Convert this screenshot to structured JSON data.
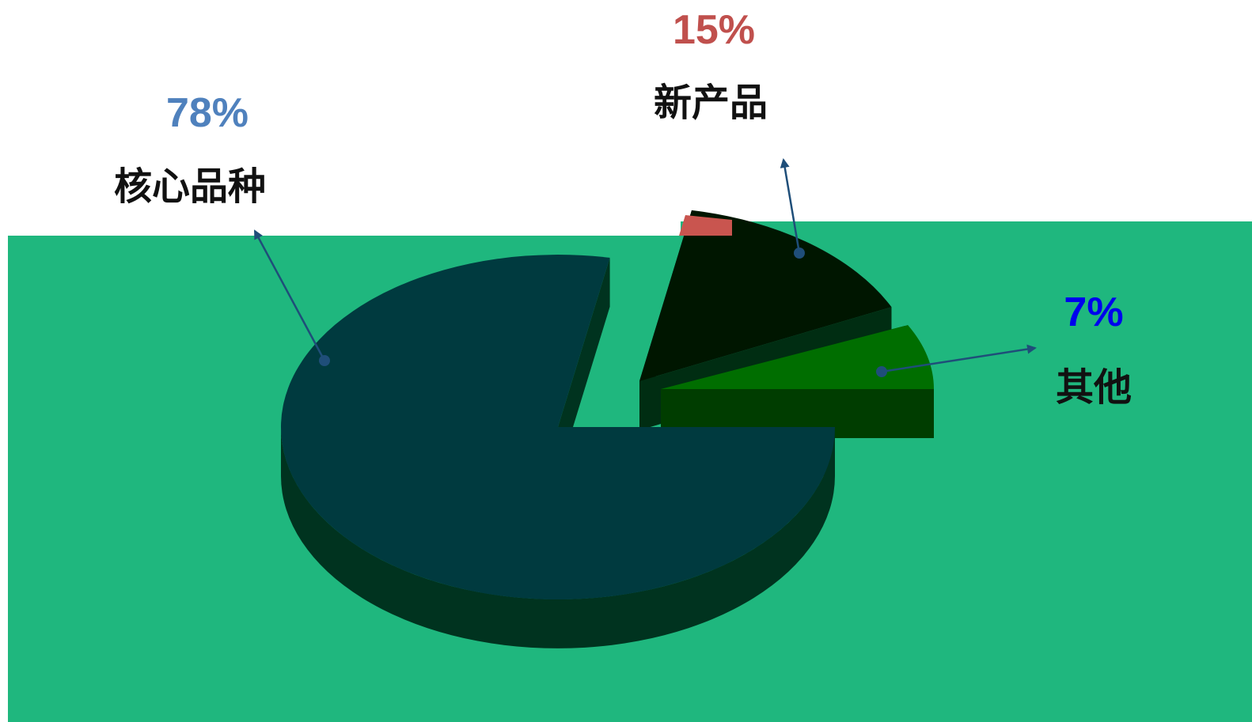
{
  "colors": {
    "background_panel": "#1FB77E",
    "slice_core_top": "#003A3F",
    "slice_core_side": "#00331F",
    "slice_new_top": "#001600",
    "slice_new_side": "#002D12",
    "slice_new_edge_accent": "#C9554F",
    "slice_other_top": "#006E00",
    "slice_other_side": "#003D00",
    "leader_line": "#1F4E79",
    "label_core_pct": "#4F81BD",
    "label_new_pct": "#C0504D",
    "label_other_pct": "#0000EE"
  },
  "chart_data": {
    "type": "pie",
    "style": "3d-exploded",
    "categories": [
      "核心品种",
      "新产品",
      "其他"
    ],
    "values": [
      78,
      15,
      7
    ],
    "value_labels": [
      "78%",
      "15%",
      "7%"
    ],
    "title": "",
    "legend": "none"
  }
}
